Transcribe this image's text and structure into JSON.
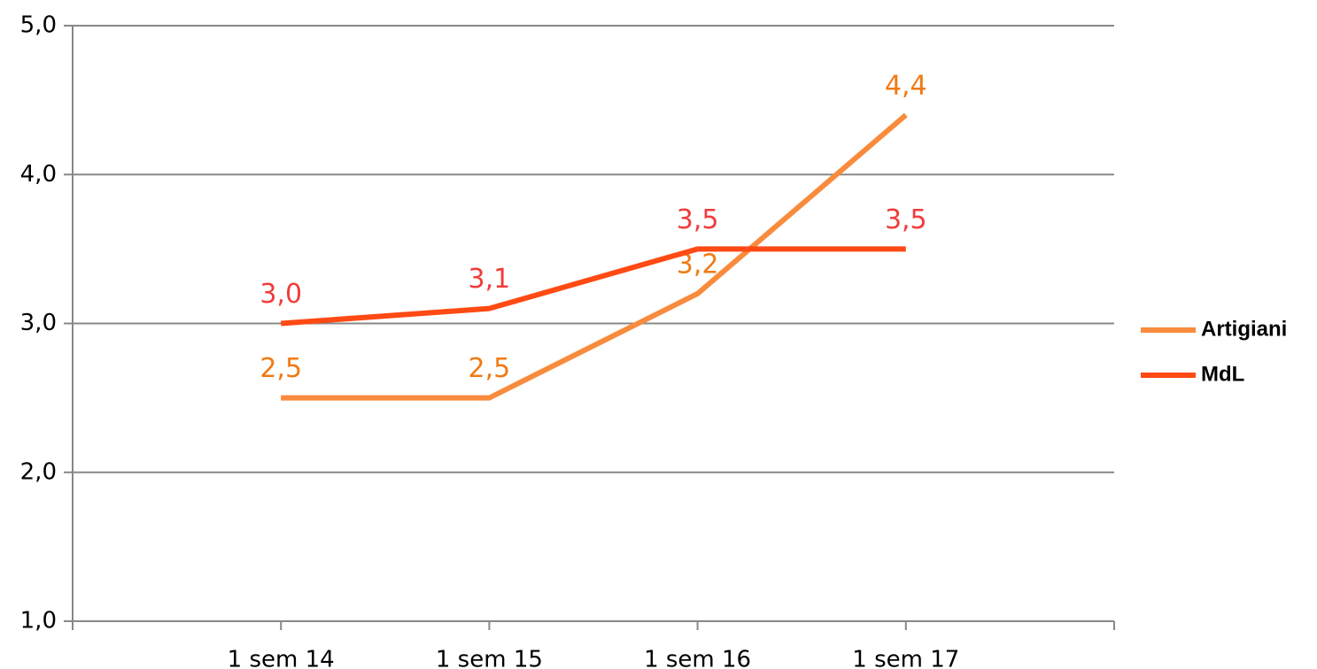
{
  "chart_data": {
    "type": "line",
    "categories": [
      "1 sem 14",
      "1 sem 15",
      "1 sem 16",
      "1 sem 17"
    ],
    "series": [
      {
        "name": "Artigiani",
        "color": "#f98b3c",
        "label_color": "#f07a14",
        "values": [
          2.5,
          2.5,
          3.2,
          4.4
        ],
        "value_labels": [
          "2,5",
          "2,5",
          "3,2",
          "4,4"
        ]
      },
      {
        "name": "MdL",
        "color": "#ff4a14",
        "label_color": "#f03c3c",
        "values": [
          3.0,
          3.1,
          3.5,
          3.5
        ],
        "value_labels": [
          "3,0",
          "3,1",
          "3,5",
          "3,5"
        ]
      }
    ],
    "ylim": [
      1,
      5
    ],
    "yticks": [
      {
        "value": 1,
        "label": "1,0"
      },
      {
        "value": 2,
        "label": "2,0"
      },
      {
        "value": 3,
        "label": "3,0"
      },
      {
        "value": 4,
        "label": "4,0"
      },
      {
        "value": 5,
        "label": "5,0"
      }
    ],
    "grid": true,
    "legend": "right"
  }
}
